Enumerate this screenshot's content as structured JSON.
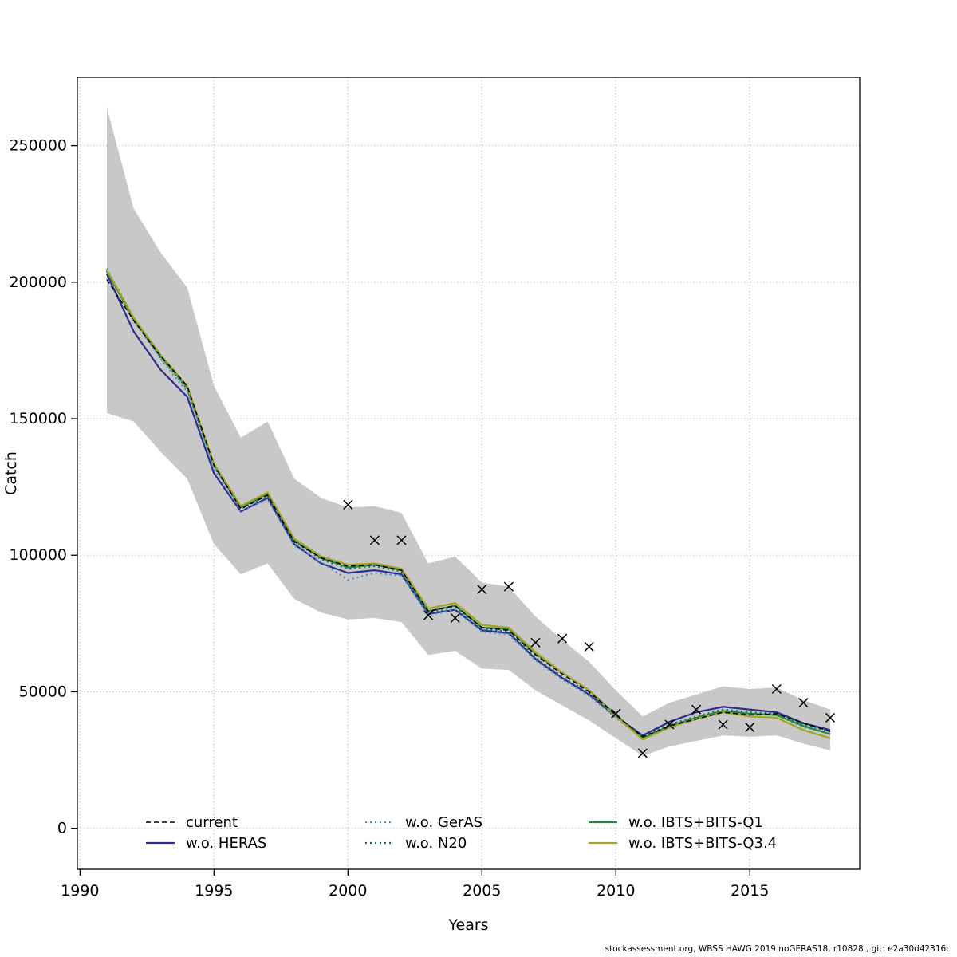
{
  "footer": "stockassessment.org, WBSS HAWG 2019 noGERAS18, r10828 , git: e2a30d42316c",
  "chart_data": {
    "type": "line",
    "title": "",
    "xlabel": "Years",
    "ylabel": "Catch",
    "xlim": [
      1989.9,
      2019.1
    ],
    "ylim": [
      -15000,
      275000
    ],
    "xticks": [
      1990,
      1995,
      2000,
      2005,
      2010,
      2015
    ],
    "yticks": [
      0,
      50000,
      100000,
      150000,
      200000,
      250000
    ],
    "grid": "dotted",
    "years": [
      1991,
      1992,
      1993,
      1994,
      1995,
      1996,
      1997,
      1998,
      1999,
      2000,
      2001,
      2002,
      2003,
      2004,
      2005,
      2006,
      2007,
      2008,
      2009,
      2010,
      2011,
      2012,
      2013,
      2014,
      2015,
      2016,
      2017,
      2018
    ],
    "confidence_band": {
      "series": "current",
      "color": "#c8c8c8",
      "upper": [
        264000,
        227000,
        211000,
        198000,
        162000,
        143000,
        149000,
        128000,
        121000,
        117500,
        118000,
        115500,
        97000,
        99500,
        90000,
        88500,
        77500,
        69000,
        61000,
        50500,
        41000,
        46000,
        49000,
        52000,
        51000,
        51500,
        47000,
        43500
      ],
      "lower": [
        152000,
        149000,
        138000,
        128000,
        104000,
        93000,
        97000,
        84000,
        79000,
        76500,
        77000,
        75500,
        63500,
        65000,
        58500,
        58000,
        50500,
        45000,
        39500,
        33000,
        26500,
        30000,
        32000,
        34000,
        33500,
        34000,
        31000,
        28500
      ]
    },
    "series": [
      {
        "name": "current",
        "color": "#000000",
        "dash": "6,4",
        "width": 1.5,
        "values": [
          201000,
          186000,
          173000,
          162000,
          133000,
          117000,
          122000,
          105000,
          99000,
          96000,
          96500,
          94500,
          79500,
          81500,
          73500,
          72500,
          63500,
          56500,
          50000,
          41500,
          33500,
          37500,
          40000,
          42500,
          41500,
          42000,
          38500,
          35500
        ]
      },
      {
        "name": "w.o. HERAS",
        "color": "#2d2d8f",
        "dash": "",
        "width": 2.2,
        "values": [
          203000,
          182000,
          168000,
          158000,
          130000,
          116000,
          121000,
          104000,
          97000,
          93500,
          94500,
          93000,
          78500,
          80000,
          72500,
          71500,
          62000,
          55000,
          49000,
          41000,
          34000,
          39000,
          42500,
          44500,
          43500,
          42500,
          38500,
          36000
        ]
      },
      {
        "name": "w.o. GerAS",
        "color": "#4a90c4",
        "dash": "2,4",
        "width": 2.2,
        "values": [
          205000,
          187000,
          172000,
          160000,
          131500,
          116000,
          120500,
          103500,
          97500,
          91000,
          93500,
          92500,
          78000,
          80000,
          72000,
          71000,
          61500,
          54500,
          48500,
          40500,
          33000,
          37500,
          40500,
          43000,
          42000,
          41500,
          37000,
          35000
        ]
      },
      {
        "name": "w.o. N20",
        "color": "#166656",
        "dash": "2,4",
        "width": 2.2,
        "values": [
          204000,
          186000,
          172500,
          161000,
          132500,
          117000,
          122000,
          105000,
          98500,
          95000,
          96000,
          94000,
          79000,
          81000,
          73000,
          72000,
          62500,
          55500,
          49500,
          41000,
          33500,
          38000,
          41000,
          43500,
          42500,
          42000,
          38000,
          35500
        ]
      },
      {
        "name": "w.o. IBTS+BITS-Q1",
        "color": "#1f8a3c",
        "dash": "",
        "width": 2.2,
        "values": [
          204000,
          186500,
          173000,
          161500,
          133000,
          117500,
          122500,
          105500,
          99000,
          95500,
          96500,
          94500,
          79500,
          81500,
          73500,
          73000,
          64000,
          57000,
          50500,
          41500,
          33000,
          37500,
          40500,
          43000,
          42000,
          41500,
          37500,
          34500
        ]
      },
      {
        "name": "w.o. IBTS+BITS-Q3.4",
        "color": "#a6a223",
        "dash": "",
        "width": 2.2,
        "values": [
          204500,
          187000,
          173500,
          162000,
          133500,
          118000,
          123000,
          106000,
          99500,
          96500,
          97000,
          95000,
          80500,
          82500,
          74500,
          73500,
          64500,
          57000,
          50500,
          41000,
          32500,
          37000,
          40000,
          42500,
          41000,
          40500,
          36000,
          33000
        ]
      }
    ],
    "observed_markers": {
      "symbol": "x",
      "years": [
        2000,
        2001,
        2002,
        2003,
        2004,
        2005,
        2006,
        2007,
        2008,
        2009,
        2010,
        2011,
        2012,
        2013,
        2014,
        2015,
        2016,
        2017,
        2018
      ],
      "values": [
        118500,
        105500,
        105500,
        78000,
        77000,
        87500,
        88500,
        68000,
        69500,
        66500,
        42000,
        27500,
        38000,
        43500,
        38000,
        37000,
        51000,
        46000,
        40500
      ]
    },
    "legend": {
      "position": "bottom-inside",
      "columns": 3,
      "entries": [
        "current",
        "w.o. HERAS",
        "w.o. GerAS",
        "w.o. N20",
        "w.o. IBTS+BITS-Q1",
        "w.o. IBTS+BITS-Q3.4"
      ]
    }
  }
}
